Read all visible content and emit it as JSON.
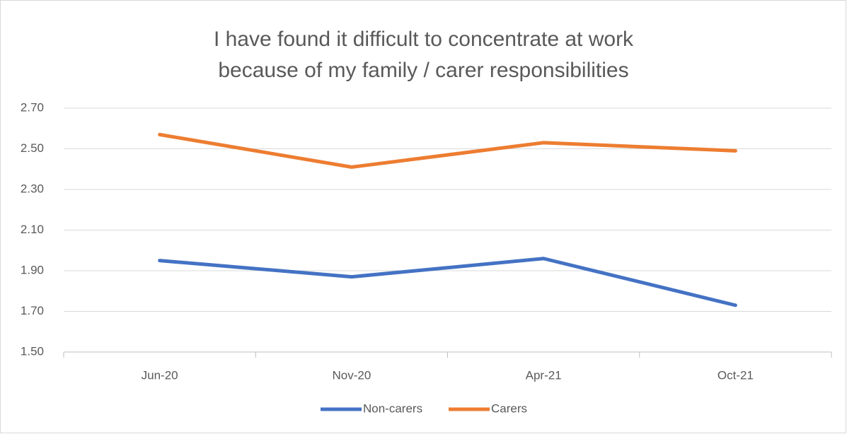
{
  "chart_data": {
    "type": "line",
    "title": "I have found it difficult to concentrate at work because of my family / carer responsibilities",
    "categories": [
      "Jun-20",
      "Nov-20",
      "Apr-21",
      "Oct-21"
    ],
    "series": [
      {
        "name": "Non-carers",
        "color": "#4472c4",
        "values": [
          1.95,
          1.87,
          1.96,
          1.73
        ]
      },
      {
        "name": "Carers",
        "color": "#ed7d31",
        "values": [
          2.57,
          2.41,
          2.53,
          2.49
        ]
      }
    ],
    "ylim": [
      1.5,
      2.7
    ],
    "yticks": [
      {
        "value": 1.5,
        "label": "1.50"
      },
      {
        "value": 1.7,
        "label": "1.70"
      },
      {
        "value": 1.9,
        "label": "1.90"
      },
      {
        "value": 2.1,
        "label": "2.10"
      },
      {
        "value": 2.3,
        "label": "2.30"
      },
      {
        "value": 2.5,
        "label": "2.50"
      },
      {
        "value": 2.7,
        "label": "2.70"
      }
    ],
    "grid": true,
    "legend": "bottom"
  }
}
